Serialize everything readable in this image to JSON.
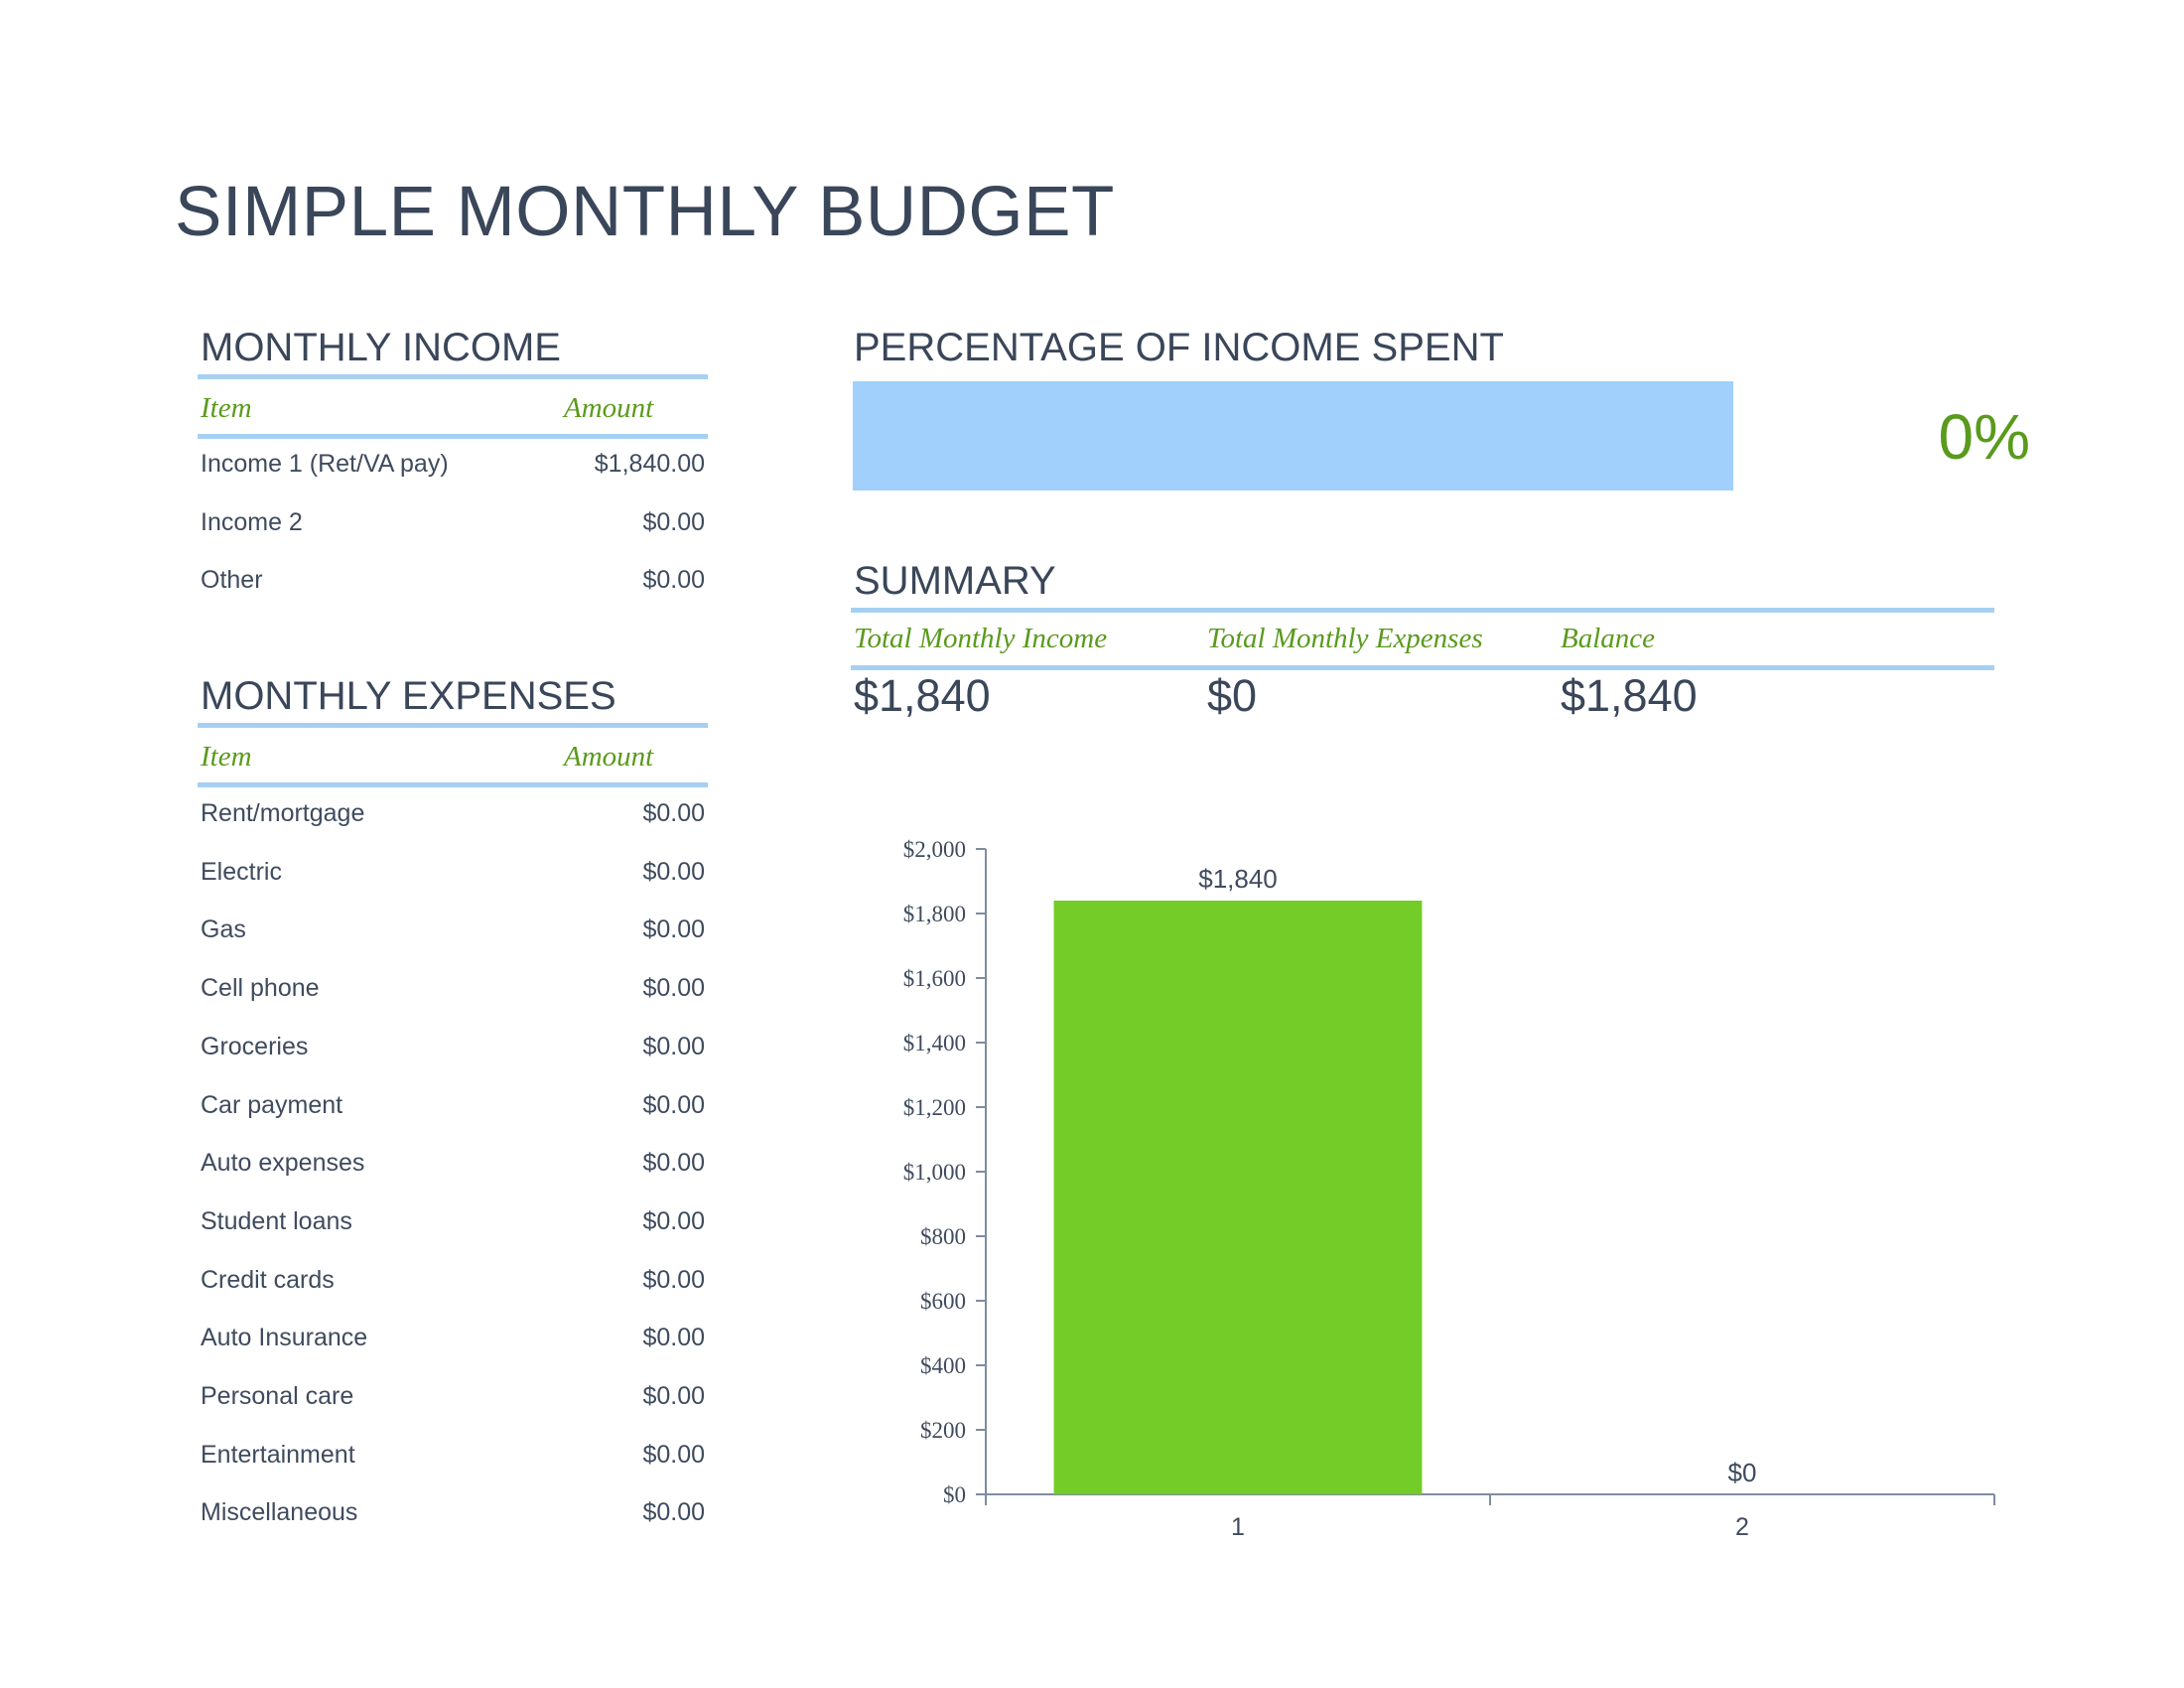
{
  "title": "SIMPLE MONTHLY BUDGET",
  "income": {
    "heading": "MONTHLY INCOME",
    "col_item": "Item",
    "col_amount": "Amount",
    "rows": [
      {
        "item": "Income 1 (Ret/VA pay)",
        "amount": "$1,840.00"
      },
      {
        "item": "Income 2",
        "amount": "$0.00"
      },
      {
        "item": "Other",
        "amount": "$0.00"
      }
    ]
  },
  "expenses": {
    "heading": "MONTHLY EXPENSES",
    "col_item": "Item",
    "col_amount": "Amount",
    "rows": [
      {
        "item": "Rent/mortgage",
        "amount": "$0.00"
      },
      {
        "item": "Electric",
        "amount": "$0.00"
      },
      {
        "item": "Gas",
        "amount": "$0.00"
      },
      {
        "item": "Cell phone",
        "amount": "$0.00"
      },
      {
        "item": "Groceries",
        "amount": "$0.00"
      },
      {
        "item": "Car payment",
        "amount": "$0.00"
      },
      {
        "item": "Auto expenses",
        "amount": "$0.00"
      },
      {
        "item": "Student loans",
        "amount": "$0.00"
      },
      {
        "item": "Credit cards",
        "amount": "$0.00"
      },
      {
        "item": "Auto Insurance",
        "amount": "$0.00"
      },
      {
        "item": "Personal care",
        "amount": "$0.00"
      },
      {
        "item": "Entertainment",
        "amount": "$0.00"
      },
      {
        "item": "Miscellaneous",
        "amount": "$0.00"
      }
    ]
  },
  "percentage": {
    "heading": "PERCENTAGE OF INCOME SPENT",
    "value_text": "0%",
    "value": 0
  },
  "summary": {
    "heading": "SUMMARY",
    "income_label": "Total Monthly Income",
    "expenses_label": "Total Monthly Expenses",
    "balance_label": "Balance",
    "income_value": "$1,840",
    "expenses_value": "$0",
    "balance_value": "$1,840"
  },
  "colors": {
    "heading": "#3a4659",
    "accent_green": "#5a9a1c",
    "rule_blue": "#a6d0f2",
    "bar_blue": "#a0d0fb",
    "bar_green": "#73cc28",
    "axis": "#7f8ca0"
  },
  "chart_data": {
    "type": "bar",
    "categories": [
      "1",
      "2"
    ],
    "values": [
      1840,
      0
    ],
    "data_labels": [
      "$1,840",
      "$0"
    ],
    "ylim": [
      0,
      2000
    ],
    "yticks": [
      0,
      200,
      400,
      600,
      800,
      1000,
      1200,
      1400,
      1600,
      1800,
      2000
    ],
    "ytick_labels": [
      "$0",
      "$200",
      "$400",
      "$600",
      "$800",
      "$1,000",
      "$1,200",
      "$1,400",
      "$1,600",
      "$1,800",
      "$2,000"
    ],
    "title": "",
    "xlabel": "",
    "ylabel": "",
    "grid": false,
    "color": "#73cc28"
  }
}
